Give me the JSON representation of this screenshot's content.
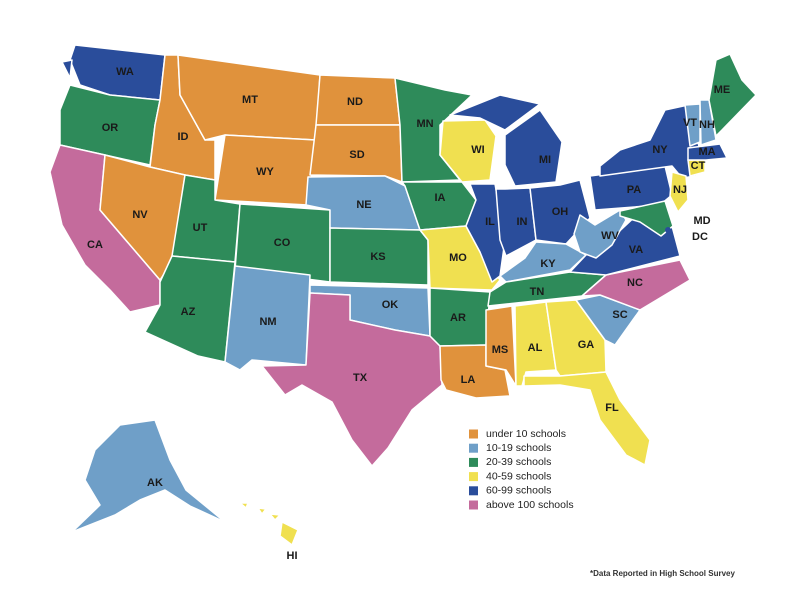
{
  "legend": [
    {
      "label": "under 10 schools",
      "color": "#e0923c"
    },
    {
      "label": "10-19 schools",
      "color": "#6f9fc8"
    },
    {
      "label": "20-39 schools",
      "color": "#2e8b5a"
    },
    {
      "label": "40-59 schools",
      "color": "#f0e050"
    },
    {
      "label": "60-99 schools",
      "color": "#2a4d9b"
    },
    {
      "label": "above 100 schools",
      "color": "#c46b9c"
    }
  ],
  "states": [
    {
      "label": "WA",
      "category": "60-99 schools"
    },
    {
      "label": "OR",
      "category": "20-39 schools"
    },
    {
      "label": "CA",
      "category": "above 100 schools"
    },
    {
      "label": "ID",
      "category": "under 10 schools"
    },
    {
      "label": "NV",
      "category": "under 10 schools"
    },
    {
      "label": "MT",
      "category": "under 10 schools"
    },
    {
      "label": "WY",
      "category": "under 10 schools"
    },
    {
      "label": "UT",
      "category": "20-39 schools"
    },
    {
      "label": "CO",
      "category": "20-39 schools"
    },
    {
      "label": "AZ",
      "category": "20-39 schools"
    },
    {
      "label": "NM",
      "category": "10-19 schools"
    },
    {
      "label": "ND",
      "category": "under 10 schools"
    },
    {
      "label": "SD",
      "category": "under 10 schools"
    },
    {
      "label": "NE",
      "category": "10-19 schools"
    },
    {
      "label": "KS",
      "category": "20-39 schools"
    },
    {
      "label": "OK",
      "category": "10-19 schools"
    },
    {
      "label": "TX",
      "category": "above 100 schools"
    },
    {
      "label": "MN",
      "category": "20-39 schools"
    },
    {
      "label": "IA",
      "category": "20-39 schools"
    },
    {
      "label": "MO",
      "category": "40-59 schools"
    },
    {
      "label": "AR",
      "category": "20-39 schools"
    },
    {
      "label": "LA",
      "category": "under 10 schools"
    },
    {
      "label": "WI",
      "category": "40-59 schools"
    },
    {
      "label": "IL",
      "category": "60-99 schools"
    },
    {
      "label": "MI",
      "category": "60-99 schools"
    },
    {
      "label": "IN",
      "category": "60-99 schools"
    },
    {
      "label": "OH",
      "category": "60-99 schools"
    },
    {
      "label": "KY",
      "category": "10-19 schools"
    },
    {
      "label": "TN",
      "category": "20-39 schools"
    },
    {
      "label": "MS",
      "category": "under 10 schools"
    },
    {
      "label": "AL",
      "category": "40-59 schools"
    },
    {
      "label": "GA",
      "category": "40-59 schools"
    },
    {
      "label": "FL",
      "category": "40-59 schools"
    },
    {
      "label": "SC",
      "category": "10-19 schools"
    },
    {
      "label": "NC",
      "category": "above 100 schools"
    },
    {
      "label": "VA",
      "category": "60-99 schools"
    },
    {
      "label": "WV",
      "category": "10-19 schools"
    },
    {
      "label": "PA",
      "category": "60-99 schools"
    },
    {
      "label": "NY",
      "category": "60-99 schools"
    },
    {
      "label": "NJ",
      "category": "40-59 schools"
    },
    {
      "label": "CT",
      "category": "40-59 schools"
    },
    {
      "label": "MA",
      "category": "60-99 schools"
    },
    {
      "label": "VT",
      "category": "10-19 schools"
    },
    {
      "label": "NH",
      "category": "10-19 schools"
    },
    {
      "label": "ME",
      "category": "20-39 schools"
    },
    {
      "label": "MD",
      "category": "20-39 schools"
    },
    {
      "label": "DC",
      "category": "60-99 schools"
    },
    {
      "label": "AK",
      "category": "10-19 schools"
    },
    {
      "label": "HI",
      "category": "40-59 schools"
    }
  ],
  "footnote": "*Data Reported in High School Survey"
}
